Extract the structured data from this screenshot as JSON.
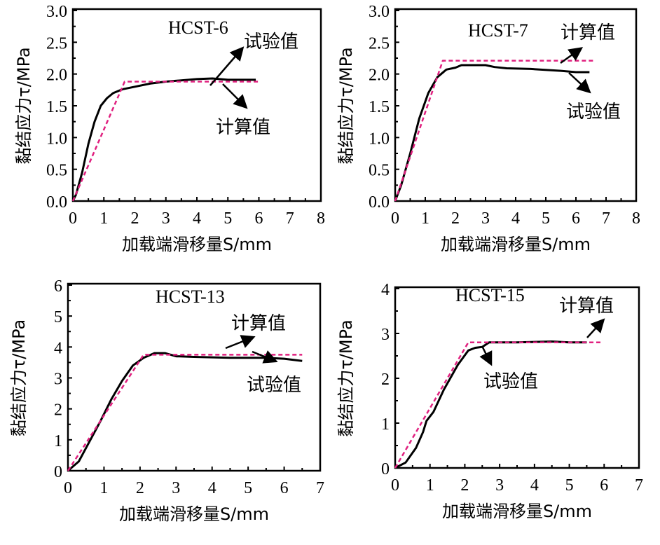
{
  "chart_data": [
    {
      "type": "line",
      "title": "HCST-6",
      "xlabel": "加载端滑移量S/mm",
      "ylabel": "黏结应力τ/MPa",
      "xlim": [
        0,
        8
      ],
      "ylim": [
        0,
        3
      ],
      "xticks": [
        "0",
        "1",
        "2",
        "3",
        "4",
        "5",
        "6",
        "7",
        "8"
      ],
      "yticks": [
        "0.0",
        "0.5",
        "1.0",
        "1.5",
        "2.0",
        "2.5",
        "3.0"
      ],
      "series": [
        {
          "name": "试验值",
          "style": "solid",
          "color": "#000000",
          "x": [
            0,
            0.1,
            0.3,
            0.5,
            0.7,
            0.9,
            1.1,
            1.3,
            1.6,
            2.0,
            2.5,
            3.0,
            3.5,
            4.0,
            4.5,
            5.0,
            5.5,
            5.9
          ],
          "y": [
            0,
            0.1,
            0.45,
            0.9,
            1.25,
            1.5,
            1.62,
            1.7,
            1.76,
            1.8,
            1.85,
            1.88,
            1.9,
            1.92,
            1.93,
            1.91,
            1.91,
            1.91
          ]
        },
        {
          "name": "计算值",
          "style": "dashed",
          "color": "#e0207f",
          "x": [
            0,
            1.67,
            6.05
          ],
          "y": [
            0,
            1.88,
            1.88
          ]
        }
      ],
      "annotations": [
        "试验值",
        "计算值"
      ]
    },
    {
      "type": "line",
      "title": "HCST-7",
      "xlabel": "加载端滑移量S/mm",
      "ylabel": "黏结应力τ/MPa",
      "xlim": [
        0,
        8
      ],
      "ylim": [
        0,
        3
      ],
      "xticks": [
        "0",
        "1",
        "2",
        "3",
        "4",
        "5",
        "6",
        "7",
        "8"
      ],
      "yticks": [
        "0.0",
        "0.5",
        "1.0",
        "1.5",
        "2.0",
        "2.5",
        "3.0"
      ],
      "series": [
        {
          "name": "试验值",
          "style": "solid",
          "color": "#000000",
          "x": [
            0,
            0.2,
            0.5,
            0.8,
            1.1,
            1.4,
            1.7,
            2.0,
            2.2,
            2.7,
            3.0,
            3.3,
            3.7,
            4.5,
            5.5,
            6.0,
            6.45
          ],
          "y": [
            0,
            0.25,
            0.75,
            1.3,
            1.7,
            1.95,
            2.07,
            2.1,
            2.14,
            2.14,
            2.14,
            2.11,
            2.09,
            2.08,
            2.05,
            2.03,
            2.03
          ]
        },
        {
          "name": "计算值",
          "style": "dashed",
          "color": "#e0207f",
          "x": [
            0,
            1.58,
            6.6
          ],
          "y": [
            0,
            2.21,
            2.21
          ]
        }
      ],
      "annotations": [
        "计算值",
        "试验值"
      ]
    },
    {
      "type": "line",
      "title": "HCST-13",
      "xlabel": "加载端滑移量S/mm",
      "ylabel": "黏结应力τ/MPa",
      "xlim": [
        0,
        7
      ],
      "ylim": [
        0,
        6
      ],
      "xticks": [
        "0",
        "1",
        "2",
        "3",
        "4",
        "5",
        "6",
        "7"
      ],
      "yticks": [
        "0",
        "1",
        "2",
        "3",
        "4",
        "5",
        "6"
      ],
      "series": [
        {
          "name": "试验值",
          "style": "solid",
          "color": "#000000",
          "x": [
            0,
            0.3,
            0.6,
            0.9,
            1.2,
            1.5,
            1.8,
            2.1,
            2.4,
            2.7,
            3.0,
            3.5,
            4.5,
            5.5,
            6.0,
            6.5
          ],
          "y": [
            0,
            0.3,
            0.95,
            1.6,
            2.3,
            2.9,
            3.4,
            3.65,
            3.8,
            3.8,
            3.7,
            3.68,
            3.65,
            3.65,
            3.62,
            3.55
          ]
        },
        {
          "name": "计算值",
          "style": "dashed",
          "color": "#e0207f",
          "x": [
            0,
            2.1,
            6.5
          ],
          "y": [
            0,
            3.75,
            3.75
          ]
        }
      ],
      "annotations": [
        "计算值",
        "试验值"
      ]
    },
    {
      "type": "line",
      "title": "HCST-15",
      "xlabel": "加载端滑移量S/mm",
      "ylabel": "黏结应力τ/MPa",
      "xlim": [
        0,
        7
      ],
      "ylim": [
        0,
        4
      ],
      "xticks": [
        "0",
        "1",
        "2",
        "3",
        "4",
        "5",
        "6",
        "7"
      ],
      "yticks": [
        "0",
        "1",
        "2",
        "3",
        "4"
      ],
      "series": [
        {
          "name": "试验值",
          "style": "solid",
          "color": "#000000",
          "x": [
            0,
            0.3,
            0.6,
            0.8,
            0.9,
            1.1,
            1.4,
            1.8,
            2.1,
            2.3,
            2.5,
            2.7,
            3.5,
            4.5,
            5.0,
            5.5
          ],
          "y": [
            0,
            0.12,
            0.45,
            0.8,
            1.05,
            1.25,
            1.75,
            2.3,
            2.62,
            2.68,
            2.7,
            2.8,
            2.8,
            2.82,
            2.8,
            2.8
          ]
        },
        {
          "name": "计算值",
          "style": "dashed",
          "color": "#e0207f",
          "x": [
            0,
            2.1,
            5.9
          ],
          "y": [
            0,
            2.8,
            2.8
          ]
        }
      ],
      "annotations": [
        "计算值",
        "试验值"
      ]
    }
  ]
}
